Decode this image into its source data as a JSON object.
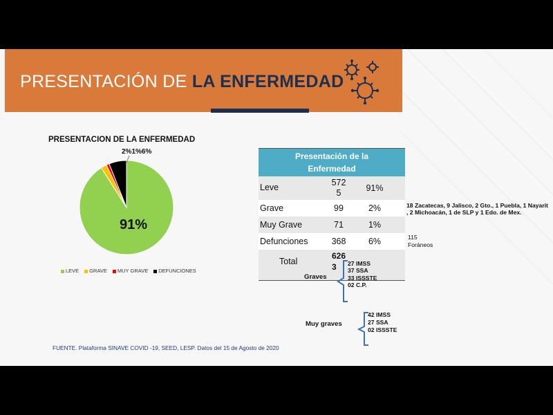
{
  "header": {
    "title_light": "PRESENTACIÓN DE ",
    "title_bold": "LA ENFERMEDAD",
    "colors": {
      "banner": "#d97a3a",
      "navy": "#1d2f4f"
    },
    "icon": "virus-icon"
  },
  "chart_data": {
    "type": "pie",
    "title": "PRESENTACION DE LA ENFERMEDAD",
    "labels": [
      "LEVE",
      "GRAVE",
      "MUY GRAVE",
      "DEFUNCIONES"
    ],
    "values": [
      91,
      2,
      1,
      6
    ],
    "data_labels": [
      "91%",
      "2%",
      "1%",
      "6%"
    ],
    "small_labels_text": "2%1%6%",
    "colors": [
      "#92d050",
      "#ffc000",
      "#ff0000",
      "#000000"
    ],
    "legend_position": "bottom"
  },
  "table": {
    "header": "Presentación de la Enfermedad",
    "rows": [
      {
        "label": "Leve",
        "count_line1": "572",
        "count_line2": "5",
        "pct": "91%"
      },
      {
        "label": "Grave",
        "count": "99",
        "pct": "2%"
      },
      {
        "label": "Muy Grave",
        "count": "71",
        "pct": "1%"
      },
      {
        "label": "Defunciones",
        "count": "368",
        "pct": "6%"
      }
    ],
    "total_label": "Total",
    "total_line1": "626",
    "total_line2": "3"
  },
  "notes": {
    "states": "18 Zacatecas, 9 Jalisco, 2 Gto., 1 Puebla, 1 Nayarit , 2 Michoacán, 1 de SLP y 1 Edo. de Mex.",
    "foraneos_count": "115",
    "foraneos_label": "Foráneos"
  },
  "graves": {
    "label": "Graves",
    "items": [
      "27 IMSS",
      "37 SSA",
      "33 ISSSTE",
      "02 C.P."
    ]
  },
  "muy_graves": {
    "label": "Muy graves",
    "items": [
      "42 IMSS",
      "27 SSA",
      "02 ISSSTE"
    ]
  },
  "footer": {
    "source": "FUENTE. Plataforma SINAVE COVID -19, SEED, LESP.  Datos del 15 de Agosto de 2020"
  }
}
